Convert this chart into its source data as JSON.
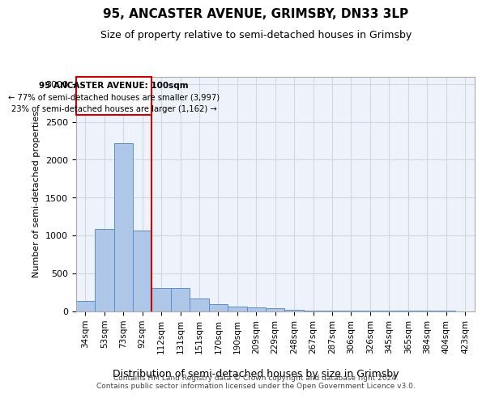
{
  "title": "95, ANCASTER AVENUE, GRIMSBY, DN33 3LP",
  "subtitle": "Size of property relative to semi-detached houses in Grimsby",
  "xlabel": "Distribution of semi-detached houses by size in Grimsby",
  "ylabel": "Number of semi-detached properties",
  "categories": [
    "34sqm",
    "53sqm",
    "73sqm",
    "92sqm",
    "112sqm",
    "131sqm",
    "151sqm",
    "170sqm",
    "190sqm",
    "209sqm",
    "229sqm",
    "248sqm",
    "267sqm",
    "287sqm",
    "306sqm",
    "326sqm",
    "345sqm",
    "365sqm",
    "384sqm",
    "404sqm",
    "423sqm"
  ],
  "values": [
    130,
    1090,
    2220,
    1060,
    300,
    300,
    170,
    95,
    60,
    45,
    35,
    20,
    10,
    5,
    3,
    2,
    1,
    1,
    1,
    1,
    0
  ],
  "bar_color": "#aec6e8",
  "bar_edge_color": "#5b8fc9",
  "vline_x": 3.5,
  "vline_color": "#cc0000",
  "annotation_title": "95 ANCASTER AVENUE: 100sqm",
  "annotation_line1": "← 77% of semi-detached houses are smaller (3,997)",
  "annotation_line2": "23% of semi-detached houses are larger (1,162) →",
  "annotation_box_color": "#ffffff",
  "annotation_box_edge": "#cc0000",
  "ylim": [
    0,
    3100
  ],
  "yticks": [
    0,
    500,
    1000,
    1500,
    2000,
    2500,
    3000
  ],
  "grid_color": "#d0d8e8",
  "bg_color": "#eef2fa",
  "footer1": "Contains HM Land Registry data © Crown copyright and database right 2024.",
  "footer2": "Contains public sector information licensed under the Open Government Licence v3.0."
}
